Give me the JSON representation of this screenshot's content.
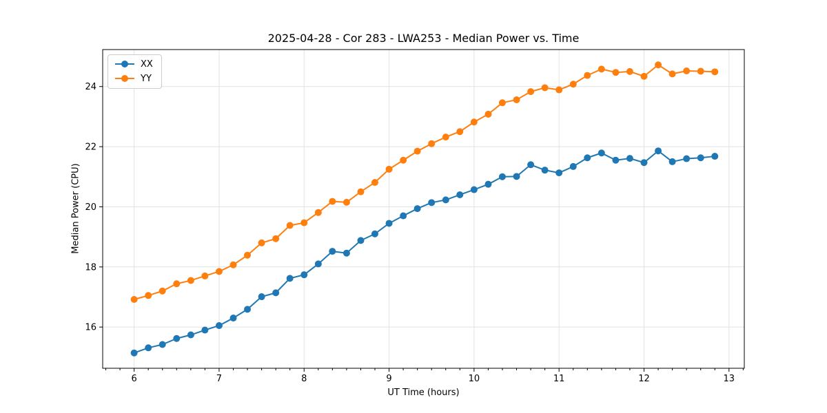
{
  "chart_data": {
    "type": "line",
    "title": "2025-04-28 - Cor 283 - LWA253 - Median Power vs. Time",
    "xlabel": "UT Time (hours)",
    "ylabel": "Median Power (CPU)",
    "xlim": [
      5.63,
      13.18
    ],
    "ylim": [
      14.63,
      25.23
    ],
    "xticks": [
      6,
      7,
      8,
      9,
      10,
      11,
      12,
      13
    ],
    "yticks": [
      16,
      18,
      20,
      22,
      24
    ],
    "x_minor_step_hours": 0.16667,
    "grid": true,
    "legend_position": "upper left",
    "x": [
      6.0,
      6.167,
      6.333,
      6.5,
      6.667,
      6.833,
      7.0,
      7.167,
      7.333,
      7.5,
      7.667,
      7.833,
      8.0,
      8.167,
      8.333,
      8.5,
      8.667,
      8.833,
      9.0,
      9.167,
      9.333,
      9.5,
      9.667,
      9.833,
      10.0,
      10.167,
      10.333,
      10.5,
      10.667,
      10.833,
      11.0,
      11.167,
      11.333,
      11.5,
      11.667,
      11.833,
      12.0,
      12.167,
      12.333,
      12.5,
      12.667,
      12.833
    ],
    "series": [
      {
        "name": "XX",
        "color": "#1f77b4",
        "values": [
          15.14,
          15.31,
          15.42,
          15.62,
          15.74,
          15.9,
          16.05,
          16.3,
          16.59,
          17.01,
          17.14,
          17.62,
          17.74,
          18.1,
          18.52,
          18.46,
          18.88,
          19.1,
          19.45,
          19.7,
          19.94,
          20.14,
          20.23,
          20.4,
          20.57,
          20.75,
          21.0,
          21.01,
          21.4,
          21.22,
          21.13,
          21.34,
          21.63,
          21.79,
          21.55,
          21.61,
          21.47,
          21.86,
          21.5,
          21.6,
          21.63,
          21.68
        ]
      },
      {
        "name": "YY",
        "color": "#ff7f0e",
        "values": [
          16.92,
          17.05,
          17.2,
          17.44,
          17.55,
          17.7,
          17.85,
          18.07,
          18.39,
          18.8,
          18.94,
          19.38,
          19.47,
          19.81,
          20.18,
          20.15,
          20.5,
          20.81,
          21.25,
          21.55,
          21.85,
          22.1,
          22.32,
          22.5,
          22.82,
          23.08,
          23.46,
          23.56,
          23.83,
          23.96,
          23.89,
          24.08,
          24.37,
          24.58,
          24.47,
          24.5,
          24.34,
          24.72,
          24.42,
          24.52,
          24.51,
          24.49
        ]
      }
    ],
    "grid_color": "#e2e2e2",
    "spine_color": "#000000"
  }
}
